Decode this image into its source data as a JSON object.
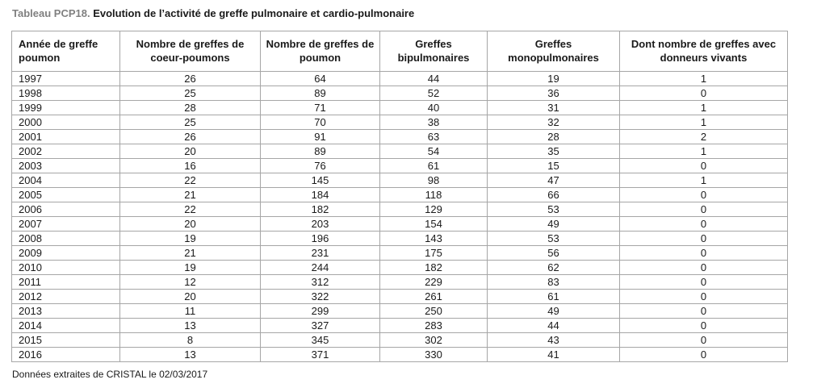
{
  "title": {
    "prefix": "Tableau PCP18.",
    "main": "Evolution de l’activité de greffe pulmonaire et cardio-pulmonaire"
  },
  "table": {
    "headers": [
      "Année de greffe poumon",
      "Nombre de greffes de coeur-poumons",
      "Nombre de greffes de poumon",
      "Greffes bipulmonaires",
      "Greffes monopulmonaires",
      "Dont nombre de greffes avec donneurs vivants"
    ],
    "rows": [
      [
        "1997",
        "26",
        "64",
        "44",
        "19",
        "1"
      ],
      [
        "1998",
        "25",
        "89",
        "52",
        "36",
        "0"
      ],
      [
        "1999",
        "28",
        "71",
        "40",
        "31",
        "1"
      ],
      [
        "2000",
        "25",
        "70",
        "38",
        "32",
        "1"
      ],
      [
        "2001",
        "26",
        "91",
        "63",
        "28",
        "2"
      ],
      [
        "2002",
        "20",
        "89",
        "54",
        "35",
        "1"
      ],
      [
        "2003",
        "16",
        "76",
        "61",
        "15",
        "0"
      ],
      [
        "2004",
        "22",
        "145",
        "98",
        "47",
        "1"
      ],
      [
        "2005",
        "21",
        "184",
        "118",
        "66",
        "0"
      ],
      [
        "2006",
        "22",
        "182",
        "129",
        "53",
        "0"
      ],
      [
        "2007",
        "20",
        "203",
        "154",
        "49",
        "0"
      ],
      [
        "2008",
        "19",
        "196",
        "143",
        "53",
        "0"
      ],
      [
        "2009",
        "21",
        "231",
        "175",
        "56",
        "0"
      ],
      [
        "2010",
        "19",
        "244",
        "182",
        "62",
        "0"
      ],
      [
        "2011",
        "12",
        "312",
        "229",
        "83",
        "0"
      ],
      [
        "2012",
        "20",
        "322",
        "261",
        "61",
        "0"
      ],
      [
        "2013",
        "11",
        "299",
        "250",
        "49",
        "0"
      ],
      [
        "2014",
        "13",
        "327",
        "283",
        "44",
        "0"
      ],
      [
        "2015",
        "8",
        "345",
        "302",
        "43",
        "0"
      ],
      [
        "2016",
        "13",
        "371",
        "330",
        "41",
        "0"
      ]
    ]
  },
  "footer": {
    "note": "Données extraites de CRISTAL le 02/03/2017"
  },
  "colors": {
    "title_prefix": "#808080",
    "text": "#1a1a1a",
    "border": "#a6a6a6",
    "background": "#ffffff"
  }
}
